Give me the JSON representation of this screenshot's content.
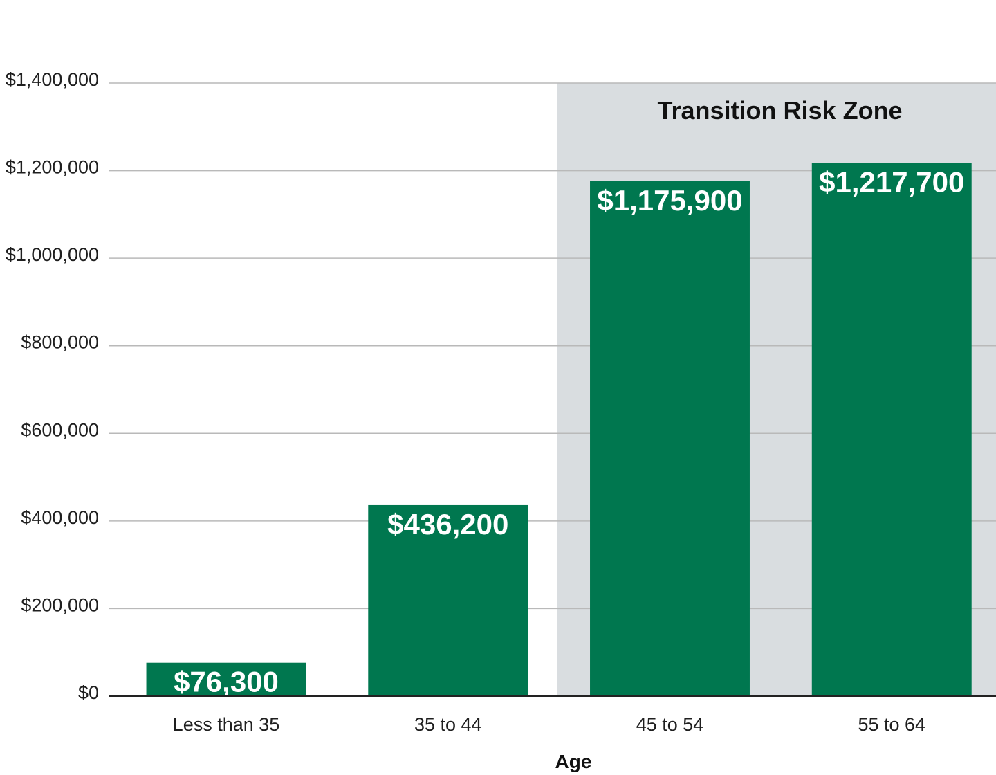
{
  "chart_data": {
    "type": "bar",
    "title": "",
    "xlabel": "Age",
    "ylabel": "",
    "categories": [
      "Less than 35",
      "35 to 44",
      "45 to 54",
      "55 to 64"
    ],
    "values": [
      76300,
      436200,
      1175900,
      1217700
    ],
    "value_labels": [
      "$76,300",
      "$436,200",
      "$1,175,900",
      "$1,217,700"
    ],
    "ylim": [
      0,
      1400000
    ],
    "yticks": [
      0,
      200000,
      400000,
      600000,
      800000,
      1000000,
      1200000,
      1400000
    ],
    "ytick_labels": [
      "$0",
      "$200,000",
      "$400,000",
      "$600,000",
      "$800,000",
      "$1,000,000",
      "$1,200,000",
      "$1,400,000"
    ],
    "grid": true,
    "bar_color": "#00774f",
    "annotation": {
      "label": "Transition Risk Zone",
      "categories": [
        "45 to 54",
        "55 to 64"
      ],
      "color": "#d9dde0"
    }
  }
}
